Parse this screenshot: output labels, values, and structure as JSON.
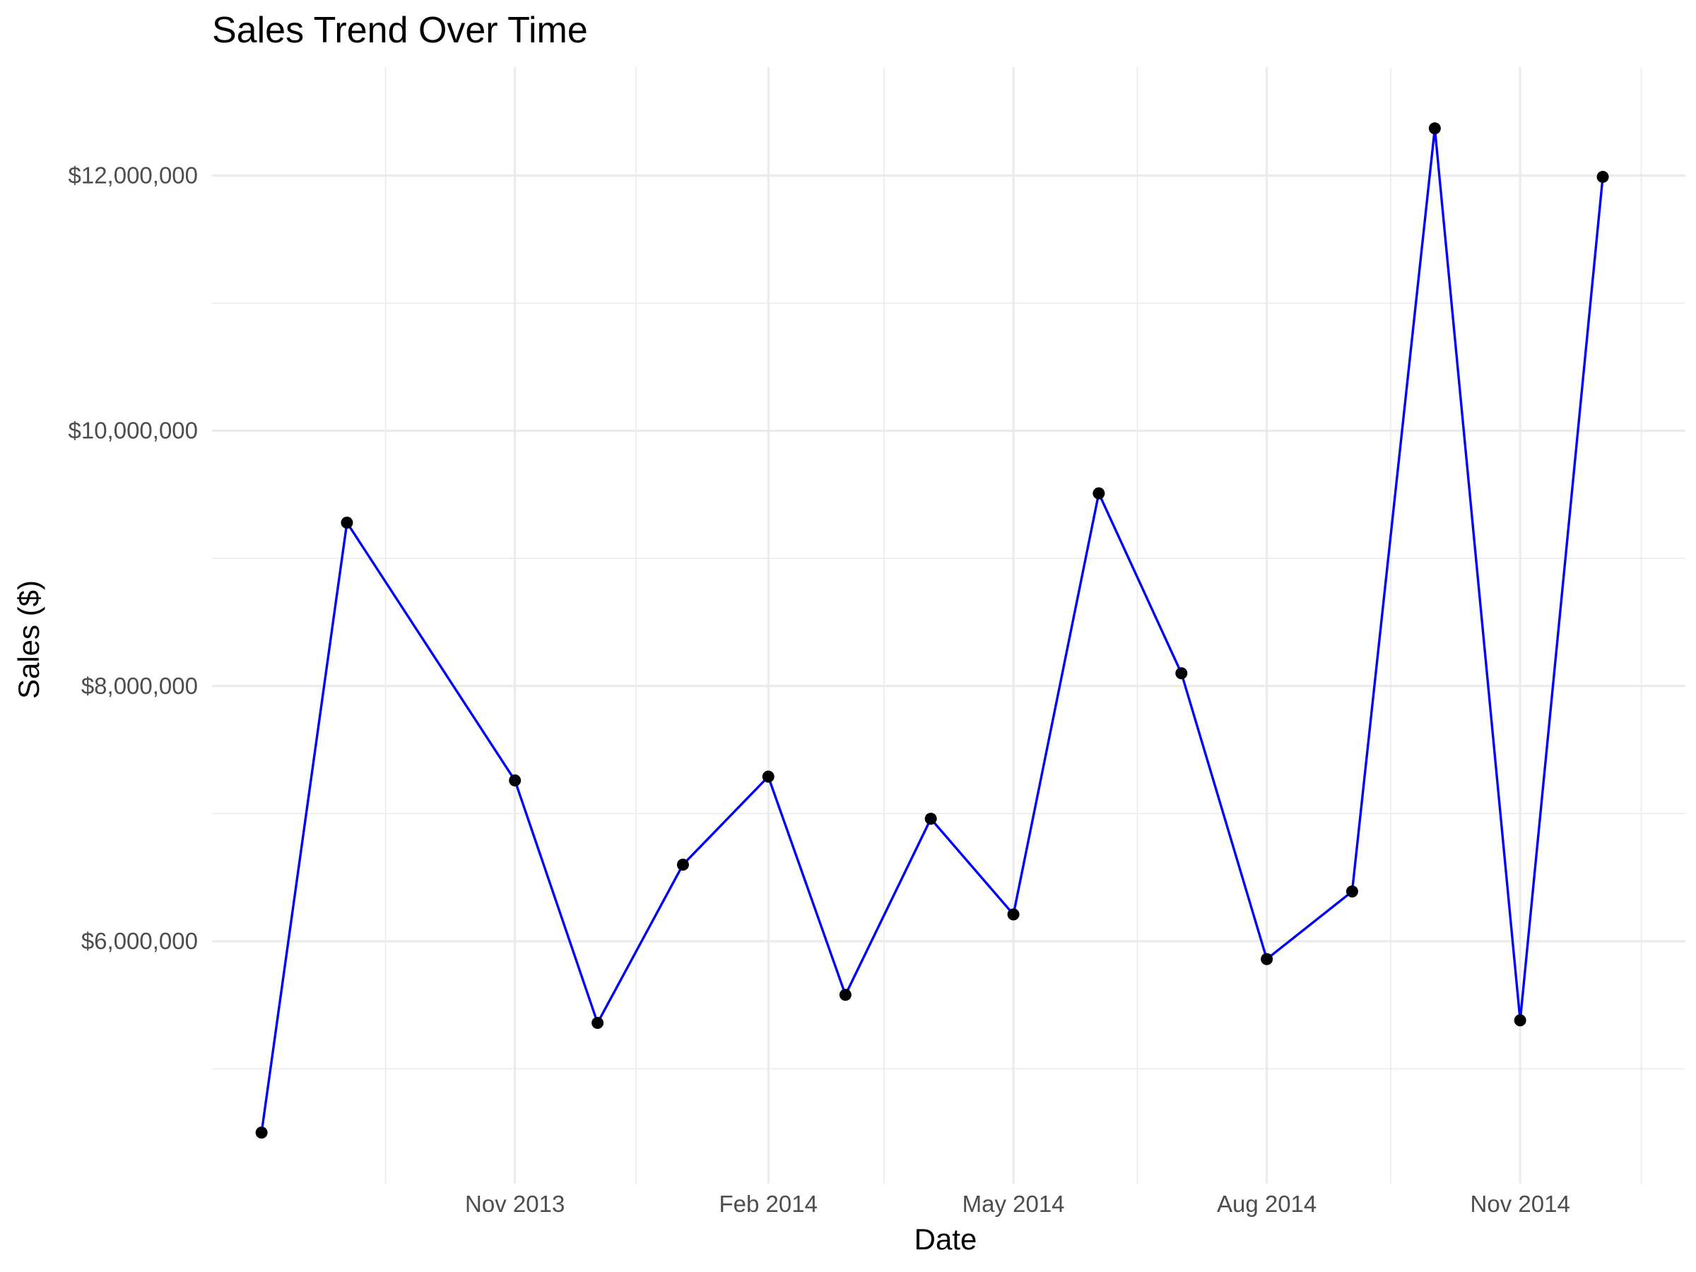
{
  "chart_data": {
    "type": "line",
    "title": "Sales Trend Over Time",
    "xlabel": "Date",
    "ylabel": "Sales ($)",
    "line_color": "#0000ff",
    "point_color": "#000000",
    "grid": true,
    "legend": "none",
    "x_ticks": [
      {
        "date": "2013-11-01",
        "label": "Nov 2013"
      },
      {
        "date": "2014-02-01",
        "label": "Feb 2014"
      },
      {
        "date": "2014-05-01",
        "label": "May 2014"
      },
      {
        "date": "2014-08-01",
        "label": "Aug 2014"
      },
      {
        "date": "2014-11-01",
        "label": "Nov 2014"
      }
    ],
    "x_minor_ticks": [
      "2013-09-15",
      "2013-12-15",
      "2014-03-15",
      "2014-06-15",
      "2014-09-15",
      "2014-12-15"
    ],
    "xlim": [
      "2013-07-14",
      "2014-12-31"
    ],
    "y_ticks": [
      {
        "value": 6000000,
        "label": "$6,000,000"
      },
      {
        "value": 8000000,
        "label": "$8,000,000"
      },
      {
        "value": 10000000,
        "label": "$10,000,000"
      },
      {
        "value": 12000000,
        "label": "$12,000,000"
      }
    ],
    "y_minor_ticks": [
      5000000,
      7000000,
      9000000,
      11000000
    ],
    "ylim": [
      4100000,
      12850000
    ],
    "points": [
      {
        "x": "2013-08-01",
        "y": 4500000
      },
      {
        "x": "2013-09-01",
        "y": 9280000
      },
      {
        "x": "2013-11-01",
        "y": 7260000
      },
      {
        "x": "2013-12-01",
        "y": 5360000
      },
      {
        "x": "2014-01-01",
        "y": 6600000
      },
      {
        "x": "2014-02-01",
        "y": 7290000
      },
      {
        "x": "2014-03-01",
        "y": 5580000
      },
      {
        "x": "2014-04-01",
        "y": 6960000
      },
      {
        "x": "2014-05-01",
        "y": 6210000
      },
      {
        "x": "2014-06-01",
        "y": 9510000
      },
      {
        "x": "2014-07-01",
        "y": 8100000
      },
      {
        "x": "2014-08-01",
        "y": 5860000
      },
      {
        "x": "2014-09-01",
        "y": 6390000
      },
      {
        "x": "2014-10-01",
        "y": 12370000
      },
      {
        "x": "2014-11-01",
        "y": 5380000
      },
      {
        "x": "2014-12-01",
        "y": 11990000
      }
    ]
  }
}
